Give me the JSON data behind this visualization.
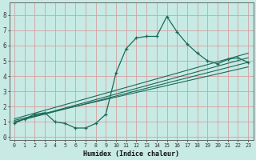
{
  "title": "",
  "xlabel": "Humidex (Indice chaleur)",
  "ylabel": "",
  "bg_color": "#c8eae4",
  "grid_color": "#d4a0a0",
  "line_color": "#1a6b5a",
  "xlim": [
    -0.5,
    23.5
  ],
  "ylim": [
    -0.2,
    8.8
  ],
  "xticks": [
    0,
    1,
    2,
    3,
    4,
    5,
    6,
    7,
    8,
    9,
    10,
    11,
    12,
    13,
    14,
    15,
    16,
    17,
    18,
    19,
    20,
    21,
    22,
    23
  ],
  "yticks": [
    0,
    1,
    2,
    3,
    4,
    5,
    6,
    7,
    8
  ],
  "main_x": [
    0,
    1,
    2,
    3,
    4,
    5,
    6,
    7,
    8,
    9,
    10,
    11,
    12,
    13,
    14,
    15,
    16,
    17,
    18,
    19,
    20,
    21,
    22,
    23
  ],
  "main_y": [
    0.9,
    1.2,
    1.5,
    1.6,
    1.0,
    0.9,
    0.6,
    0.6,
    0.9,
    1.5,
    4.2,
    5.8,
    6.5,
    6.6,
    6.6,
    7.9,
    6.9,
    6.1,
    5.5,
    5.0,
    4.8,
    5.1,
    5.2,
    4.9
  ],
  "line2_x": [
    0,
    23
  ],
  "line2_y": [
    1.0,
    5.2
  ],
  "line3_x": [
    0,
    23
  ],
  "line3_y": [
    1.0,
    4.9
  ],
  "line4_x": [
    0,
    23
  ],
  "line4_y": [
    1.1,
    4.6
  ],
  "line5_x": [
    0,
    23
  ],
  "line5_y": [
    1.2,
    5.5
  ]
}
